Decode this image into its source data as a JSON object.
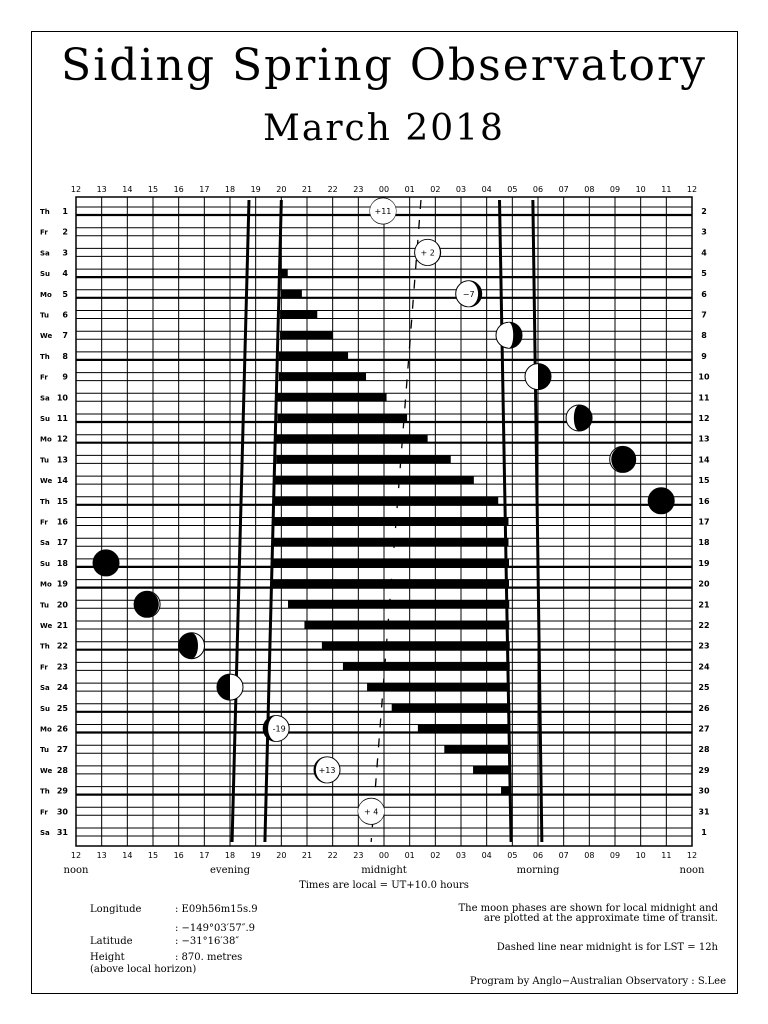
{
  "title": "Siding Spring Observatory",
  "subtitle": "March 2018",
  "chart_data": {
    "type": "gantt-style night chart",
    "hour_labels": [
      "12",
      "13",
      "14",
      "15",
      "16",
      "17",
      "18",
      "19",
      "20",
      "21",
      "22",
      "23",
      "00",
      "01",
      "02",
      "03",
      "04",
      "05",
      "06",
      "07",
      "08",
      "09",
      "10",
      "11",
      "12"
    ],
    "x_range_hours": [
      12,
      36
    ],
    "time_words": [
      {
        "label": "noon",
        "hour": 12
      },
      {
        "label": "evening",
        "hour": 18
      },
      {
        "label": "midnight",
        "hour": 24
      },
      {
        "label": "morning",
        "hour": 30
      },
      {
        "label": "noon",
        "hour": 36
      }
    ],
    "days": [
      {
        "dow": "Th",
        "day": 1,
        "next": 2
      },
      {
        "dow": "Fr",
        "day": 2,
        "next": 3
      },
      {
        "dow": "Sa",
        "day": 3,
        "next": 4
      },
      {
        "dow": "Su",
        "day": 4,
        "next": 5
      },
      {
        "dow": "Mo",
        "day": 5,
        "next": 6
      },
      {
        "dow": "Tu",
        "day": 6,
        "next": 7
      },
      {
        "dow": "We",
        "day": 7,
        "next": 8
      },
      {
        "dow": "Th",
        "day": 8,
        "next": 9
      },
      {
        "dow": "Fr",
        "day": 9,
        "next": 10
      },
      {
        "dow": "Sa",
        "day": 10,
        "next": 11
      },
      {
        "dow": "Su",
        "day": 11,
        "next": 12
      },
      {
        "dow": "Mo",
        "day": 12,
        "next": 13
      },
      {
        "dow": "Tu",
        "day": 13,
        "next": 14
      },
      {
        "dow": "We",
        "day": 14,
        "next": 15
      },
      {
        "dow": "Th",
        "day": 15,
        "next": 16
      },
      {
        "dow": "Fr",
        "day": 16,
        "next": 17
      },
      {
        "dow": "Sa",
        "day": 17,
        "next": 18
      },
      {
        "dow": "Su",
        "day": 18,
        "next": 19
      },
      {
        "dow": "Mo",
        "day": 19,
        "next": 20
      },
      {
        "dow": "Tu",
        "day": 20,
        "next": 21
      },
      {
        "dow": "We",
        "day": 21,
        "next": 22
      },
      {
        "dow": "Th",
        "day": 22,
        "next": 23
      },
      {
        "dow": "Fr",
        "day": 23,
        "next": 24
      },
      {
        "dow": "Sa",
        "day": 24,
        "next": 25
      },
      {
        "dow": "Su",
        "day": 25,
        "next": 26
      },
      {
        "dow": "Mo",
        "day": 26,
        "next": 27
      },
      {
        "dow": "Tu",
        "day": 27,
        "next": 28
      },
      {
        "dow": "We",
        "day": 28,
        "next": 29
      },
      {
        "dow": "Th",
        "day": 29,
        "next": 30
      },
      {
        "dow": "Fr",
        "day": 30,
        "next": 31
      },
      {
        "dow": "Sa",
        "day": 31,
        "next": 1
      }
    ],
    "dark_time": [
      {
        "day": 4,
        "start": 20.0,
        "end": 20.25
      },
      {
        "day": 5,
        "start": 20.0,
        "end": 20.8
      },
      {
        "day": 6,
        "start": 19.95,
        "end": 21.4
      },
      {
        "day": 7,
        "start": 19.95,
        "end": 22.0
      },
      {
        "day": 8,
        "start": 19.9,
        "end": 22.6
      },
      {
        "day": 9,
        "start": 19.9,
        "end": 23.3
      },
      {
        "day": 10,
        "start": 19.85,
        "end": 24.1
      },
      {
        "day": 11,
        "start": 19.85,
        "end": 24.9
      },
      {
        "day": 12,
        "start": 19.8,
        "end": 25.7
      },
      {
        "day": 13,
        "start": 19.8,
        "end": 26.6
      },
      {
        "day": 14,
        "start": 19.75,
        "end": 27.5
      },
      {
        "day": 15,
        "start": 19.75,
        "end": 28.45
      },
      {
        "day": 16,
        "start": 19.7,
        "end": 28.85
      },
      {
        "day": 17,
        "start": 19.7,
        "end": 28.85
      },
      {
        "day": 18,
        "start": 19.65,
        "end": 28.87
      },
      {
        "day": 19,
        "start": 19.6,
        "end": 28.87
      },
      {
        "day": 20,
        "start": 20.26,
        "end": 28.88
      },
      {
        "day": 21,
        "start": 20.9,
        "end": 28.88
      },
      {
        "day": 22,
        "start": 21.58,
        "end": 28.9
      },
      {
        "day": 23,
        "start": 22.4,
        "end": 28.9
      },
      {
        "day": 24,
        "start": 23.34,
        "end": 28.9
      },
      {
        "day": 25,
        "start": 24.3,
        "end": 28.92
      },
      {
        "day": 26,
        "start": 25.32,
        "end": 28.92
      },
      {
        "day": 27,
        "start": 26.35,
        "end": 28.93
      },
      {
        "day": 28,
        "start": 27.47,
        "end": 28.93
      },
      {
        "day": 29,
        "start": 28.56,
        "end": 28.95
      }
    ],
    "twilight_lines": [
      {
        "name": "evening-civil",
        "day1": 18.74,
        "day31": 18.08
      },
      {
        "name": "evening-astronomical",
        "day1": 20.0,
        "day31": 19.36
      },
      {
        "name": "morning-astronomical",
        "day1": 28.5,
        "day31": 28.95
      },
      {
        "name": "morning-civil",
        "day1": 29.8,
        "day31": 30.15
      }
    ],
    "lst12_line": {
      "day1": 25.44,
      "day31": 23.5,
      "style": "dashed"
    },
    "moons": [
      {
        "day": 1,
        "hour": 23.96,
        "lit": 0.99,
        "waxing": false,
        "label": "+11"
      },
      {
        "day": 3,
        "hour": 25.7,
        "lit": 0.96,
        "waxing": false,
        "label": "+ 2"
      },
      {
        "day": 5,
        "hour": 27.3,
        "lit": 0.85,
        "waxing": false,
        "label": "−7"
      },
      {
        "day": 7,
        "hour": 28.87,
        "lit": 0.65,
        "waxing": false,
        "label": ""
      },
      {
        "day": 9,
        "hour": 30.0,
        "lit": 0.5,
        "waxing": false,
        "label": ""
      },
      {
        "day": 11,
        "hour": 31.6,
        "lit": 0.3,
        "waxing": false,
        "label": ""
      },
      {
        "day": 13,
        "hour": 33.3,
        "lit": 0.06,
        "waxing": false,
        "label": ""
      },
      {
        "day": 15,
        "hour": 34.8,
        "lit": 0.0,
        "waxing": false,
        "label": ""
      },
      {
        "day": 18,
        "hour": 13.17,
        "lit": 0.0,
        "waxing": true,
        "label": ""
      },
      {
        "day": 20,
        "hour": 14.77,
        "lit": 0.05,
        "waxing": true,
        "label": ""
      },
      {
        "day": 22,
        "hour": 16.5,
        "lit": 0.25,
        "waxing": true,
        "label": ""
      },
      {
        "day": 24,
        "hour": 18.0,
        "lit": 0.5,
        "waxing": true,
        "label": ""
      },
      {
        "day": 26,
        "hour": 19.8,
        "lit": 0.8,
        "waxing": true,
        "label": "-19"
      },
      {
        "day": 28,
        "hour": 21.78,
        "lit": 0.92,
        "waxing": true,
        "label": "+13"
      },
      {
        "day": 30,
        "hour": 23.5,
        "lit": 0.99,
        "waxing": true,
        "label": "+ 4"
      }
    ],
    "colors": {
      "ink": "#000000",
      "paper": "#ffffff"
    }
  },
  "footer": {
    "timezone": "Times are local = UT+10.0 hours",
    "longitude_label": "Longitude",
    "longitude_time": ": E09h56m15s.9",
    "longitude_deg": ": −149°03′57″.9",
    "latitude_label": "Latitude",
    "latitude_value": ": −31°16′38″",
    "height_label": "Height",
    "height_value": ":  870. metres",
    "height_note": "(above local horizon)",
    "moon_note_1": "The moon phases are shown for local midnight and",
    "moon_note_2": "are plotted at the approximate time of transit.",
    "dashed_note": "Dashed line near midnight is for LST = 12h",
    "credit": "Program by Anglo−Australian Observatory : S.Lee"
  }
}
